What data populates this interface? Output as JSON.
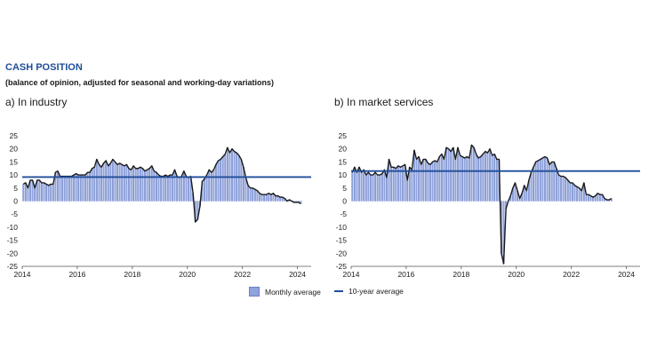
{
  "header": {
    "title": "CASH POSITION",
    "subtitle": "(balance of opinion, adjusted for seasonal and working-day variations)"
  },
  "colors": {
    "bars": "#8fa3dc",
    "bar_stroke": "#5b71bf",
    "line": "#1a1a1a",
    "average": "#1f4e9a",
    "title": "#1f4e9a"
  },
  "legend": {
    "bars_label": "Monthly average",
    "line_label": "10-year average"
  },
  "chart_data": [
    {
      "type": "bar",
      "title": "a)  In industry",
      "x_start": "2014-01",
      "ylim": [
        -25,
        25
      ],
      "yticks": [
        25,
        20,
        15,
        10,
        5,
        0,
        -5,
        -10,
        -15,
        -20,
        -25
      ],
      "xticks": [
        "2014",
        "2016",
        "2018",
        "2020",
        "2022",
        "2024"
      ],
      "average": 9.2,
      "monthly": [
        6.5,
        7,
        5,
        8,
        8,
        5,
        8,
        8,
        7,
        7,
        6.5,
        6,
        6.5,
        6.5,
        11,
        11.5,
        9.5,
        9.5,
        9.5,
        9.5,
        9.5,
        9.5,
        10,
        10.5,
        10,
        10,
        10,
        10,
        11,
        11,
        12.5,
        13,
        16,
        14,
        13,
        14.5,
        15.5,
        13.5,
        14.5,
        16,
        15,
        14,
        14.5,
        14,
        13.5,
        14,
        12.5,
        12,
        13.5,
        12.5,
        12.5,
        13,
        12.5,
        11.5,
        12,
        12.5,
        13.5,
        11.5,
        11,
        10,
        9.5,
        9.5,
        10,
        9.5,
        10,
        10,
        12,
        9.5,
        9,
        9.5,
        11.5,
        9.5,
        9,
        9.5,
        3,
        -8,
        -7,
        -2,
        7.5,
        8.5,
        10,
        12,
        11,
        12,
        14,
        15.5,
        16,
        17,
        18,
        20.5,
        18.5,
        20,
        19,
        18.5,
        17.5,
        16,
        13,
        9,
        6,
        5,
        5,
        4.5,
        4,
        3,
        2.5,
        2.5,
        2.5,
        3,
        2.5,
        3,
        2,
        2,
        1.5,
        1.5,
        1,
        0,
        0.5,
        0,
        -0.5,
        -0.5,
        -0.5,
        -1
      ]
    },
    {
      "type": "bar",
      "title": "b)  In market services",
      "x_start": "2014-01",
      "ylim": [
        -25,
        25
      ],
      "yticks": [
        25,
        20,
        15,
        10,
        5,
        0,
        -5,
        -10,
        -15,
        -20,
        -25
      ],
      "xticks": [
        "2014",
        "2016",
        "2018",
        "2020",
        "2022",
        "2024"
      ],
      "average": 11.5,
      "monthly": [
        11,
        13,
        11,
        13,
        11,
        12,
        10,
        11,
        10,
        10,
        11,
        10,
        10,
        10.5,
        12,
        9,
        16,
        13,
        13,
        12.5,
        13.5,
        13,
        13.5,
        14,
        8,
        13,
        12,
        19.5,
        16,
        17,
        14,
        16,
        16,
        14.5,
        14,
        15,
        15.5,
        15,
        17,
        18,
        16,
        20.5,
        20,
        19,
        20.5,
        16,
        20.5,
        17.5,
        17,
        16.5,
        17,
        16.5,
        21.5,
        20.5,
        18,
        16.5,
        17,
        18,
        19,
        18.5,
        20,
        17.5,
        18,
        16,
        16,
        -20,
        -24,
        -3,
        0,
        2,
        5,
        7,
        4,
        1,
        3,
        6,
        4,
        8,
        11,
        13,
        15,
        15.5,
        16,
        16.5,
        17,
        16.5,
        14,
        15,
        15,
        12.5,
        10,
        9.5,
        9.5,
        9,
        8,
        7,
        7,
        6,
        5.5,
        5,
        4,
        7,
        2.5,
        2.5,
        2,
        1.5,
        2,
        3,
        2.5,
        2.5,
        1,
        0.5,
        0.5,
        1
      ]
    }
  ]
}
